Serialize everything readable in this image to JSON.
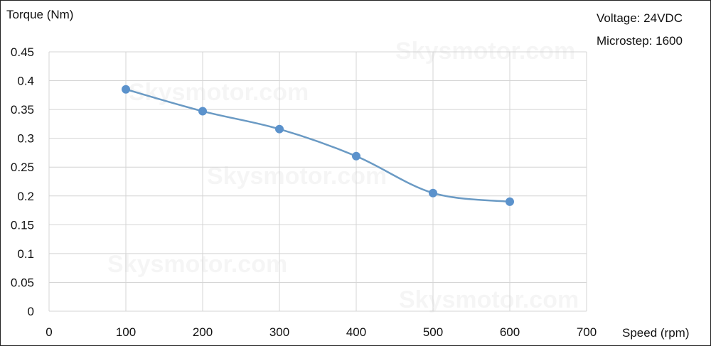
{
  "watermark": "Skysmotor.com",
  "chart_data": {
    "type": "line",
    "title": "",
    "xlabel": "Speed (rpm)",
    "ylabel": "Torque (Nm)",
    "xlim": [
      0,
      700
    ],
    "ylim": [
      0,
      0.45
    ],
    "x_ticks": [
      "0",
      "100",
      "200",
      "300",
      "400",
      "500",
      "600",
      "700"
    ],
    "y_ticks": [
      "0",
      "0.05",
      "0.1",
      "0.15",
      "0.2",
      "0.25",
      "0.3",
      "0.35",
      "0.4",
      "0.45"
    ],
    "grid": true,
    "annotations": [
      "Voltage: 24VDC",
      "Microstep: 1600"
    ],
    "line_color": "#6a9ac4",
    "marker_color": "#5b92cc",
    "series": [
      {
        "x": [
          100,
          200,
          300,
          400,
          500,
          600
        ],
        "values": [
          0.385,
          0.347,
          0.316,
          0.269,
          0.205,
          0.19
        ]
      }
    ]
  }
}
